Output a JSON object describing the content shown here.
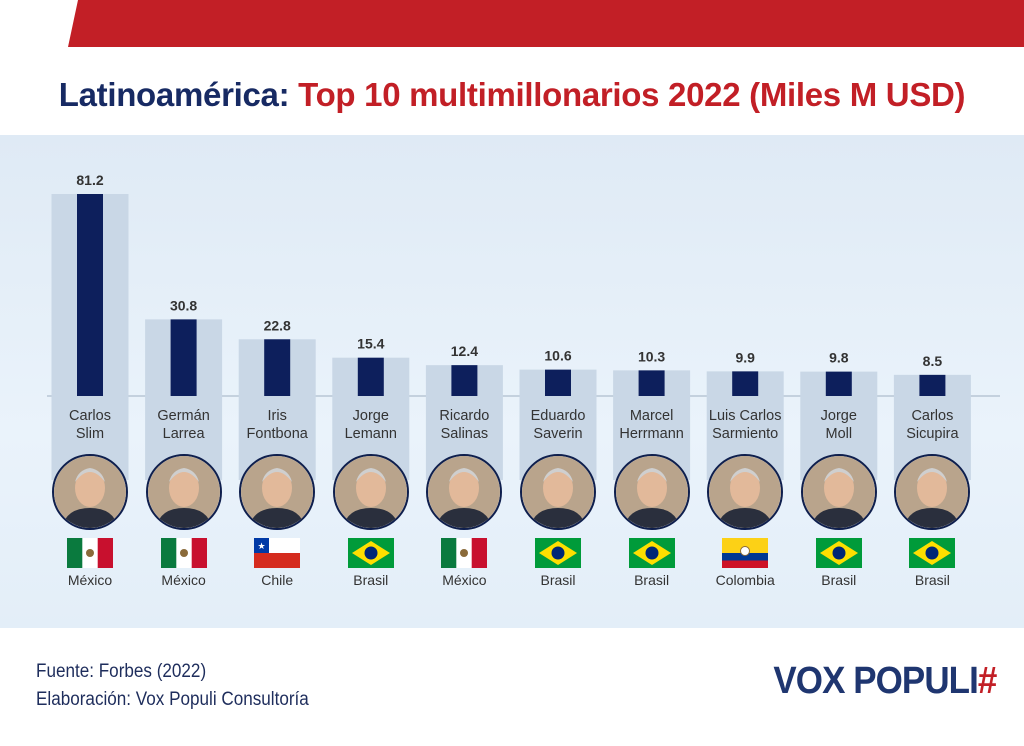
{
  "title": {
    "part1": "Latinoamérica:",
    "part2": "Top 10 multimillonarios 2022 (Miles M USD)"
  },
  "colors": {
    "accent_red": "#c21f26",
    "navy": "#0d1f5c",
    "bar_bg": "#c9d7e6"
  },
  "chart_data": {
    "type": "bar",
    "title": "Latinoamérica: Top 10 multimillonarios 2022 (Miles M USD)",
    "categories": [
      "Carlos Slim",
      "Germán Larrea",
      "Iris Fontbona",
      "Jorge Lemann",
      "Ricardo Salinas",
      "Eduardo Saverin",
      "Marcel Herrmann",
      "Luis Carlos Sarmiento",
      "Jorge Moll",
      "Carlos Sicupira"
    ],
    "name_lines": [
      [
        "Carlos",
        "Slim"
      ],
      [
        "Germán",
        "Larrea"
      ],
      [
        "Iris",
        "Fontbona"
      ],
      [
        "Jorge",
        "Lemann"
      ],
      [
        "Ricardo",
        "Salinas"
      ],
      [
        "Eduardo",
        "Saverin"
      ],
      [
        "Marcel",
        "Herrmann"
      ],
      [
        "Luis Carlos",
        "Sarmiento"
      ],
      [
        "Jorge",
        "Moll"
      ],
      [
        "Carlos",
        "Sicupira"
      ]
    ],
    "values": [
      81.2,
      30.8,
      22.8,
      15.4,
      12.4,
      10.6,
      10.3,
      9.9,
      9.8,
      8.5
    ],
    "labels": [
      "81.2",
      "30.8",
      "22.8",
      "15.4",
      "12.4",
      "10.6",
      "10.3",
      "9.9",
      "9.8",
      "8.5"
    ],
    "countries": [
      "México",
      "México",
      "Chile",
      "Brasil",
      "México",
      "Brasil",
      "Brasil",
      "Colombia",
      "Brasil",
      "Brasil"
    ],
    "flags": [
      "mexico",
      "mexico",
      "chile",
      "brazil",
      "mexico",
      "brazil",
      "brazil",
      "colombia",
      "brazil",
      "brazil"
    ],
    "ylim": [
      0,
      81.2
    ],
    "grid": false,
    "data_labels": true
  },
  "footer": {
    "source": "Fuente: Forbes (2022)",
    "credit": "Elaboración: Vox Populi Consultoría"
  },
  "logo": {
    "text": "VOX POPULI",
    "mark": "#"
  }
}
